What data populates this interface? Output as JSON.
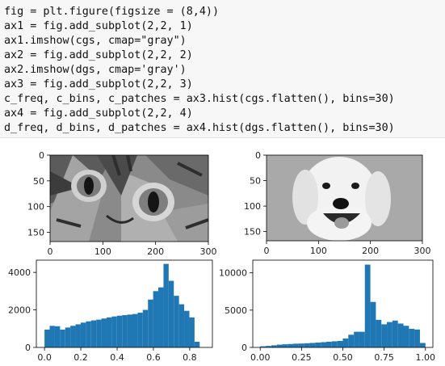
{
  "code_cell": {
    "lines": [
      "fig = plt.figure(figsize = (8,4))",
      "ax1 = fig.add_subplot(2,2, 1)",
      "ax1.imshow(cgs, cmap=\"gray\")",
      "ax2 = fig.add_subplot(2,2, 2)",
      "ax2.imshow(dgs, cmap='gray')",
      "ax3 = fig.add_subplot(2,2, 3)",
      "c_freq, c_bins, c_patches = ax3.hist(cgs.flatten(), bins=30)",
      "ax4 = fig.add_subplot(2,2, 4)",
      "d_freq, d_bins, d_patches = ax4.hist(dgs.flatten(), bins=30)"
    ]
  },
  "output": {
    "image_axes": [
      {
        "id": "cat",
        "image_icon": "cat-face-photo-icon",
        "x_ticks": [
          "0",
          "100",
          "200",
          "300"
        ],
        "y_ticks": [
          "0",
          "50",
          "100",
          "150"
        ]
      },
      {
        "id": "dog",
        "image_icon": "dog-face-photo-icon",
        "x_ticks": [
          "0",
          "100",
          "200",
          "300"
        ],
        "y_ticks": [
          "0",
          "50",
          "100",
          "150"
        ]
      }
    ],
    "bar_color": "#1f77b4"
  },
  "chart_data": [
    {
      "type": "bar",
      "title": "",
      "xlabel": "",
      "ylabel": "",
      "x_ticks": [
        "0.0",
        "0.2",
        "0.4",
        "0.6",
        "0.8"
      ],
      "y_ticks": [
        "0",
        "2000",
        "4000"
      ],
      "xlim": [
        -0.045,
        0.925
      ],
      "ylim": [
        0,
        4650
      ],
      "bin_start": 0.0,
      "bin_width": 0.0285,
      "values": [
        950,
        1150,
        1130,
        950,
        1060,
        1150,
        1230,
        1320,
        1390,
        1440,
        1480,
        1540,
        1600,
        1650,
        1690,
        1720,
        1750,
        1780,
        1850,
        2000,
        2550,
        3000,
        3200,
        4450,
        3550,
        2750,
        2300,
        1950,
        1600,
        300
      ],
      "grid": false
    },
    {
      "type": "bar",
      "title": "",
      "xlabel": "",
      "ylabel": "",
      "x_ticks": [
        "0.00",
        "0.25",
        "0.50",
        "0.75",
        "1.00"
      ],
      "y_ticks": [
        "0",
        "5000",
        "10000"
      ],
      "xlim": [
        -0.045,
        1.045
      ],
      "ylim": [
        0,
        11700
      ],
      "bin_start": 0.0,
      "bin_width": 0.03333,
      "values": [
        150,
        200,
        280,
        370,
        420,
        460,
        500,
        520,
        560,
        600,
        650,
        700,
        760,
        820,
        870,
        1200,
        1700,
        2100,
        2100,
        11100,
        6100,
        3700,
        3100,
        3400,
        3600,
        3200,
        2900,
        2500,
        2400,
        600
      ],
      "grid": false
    }
  ]
}
